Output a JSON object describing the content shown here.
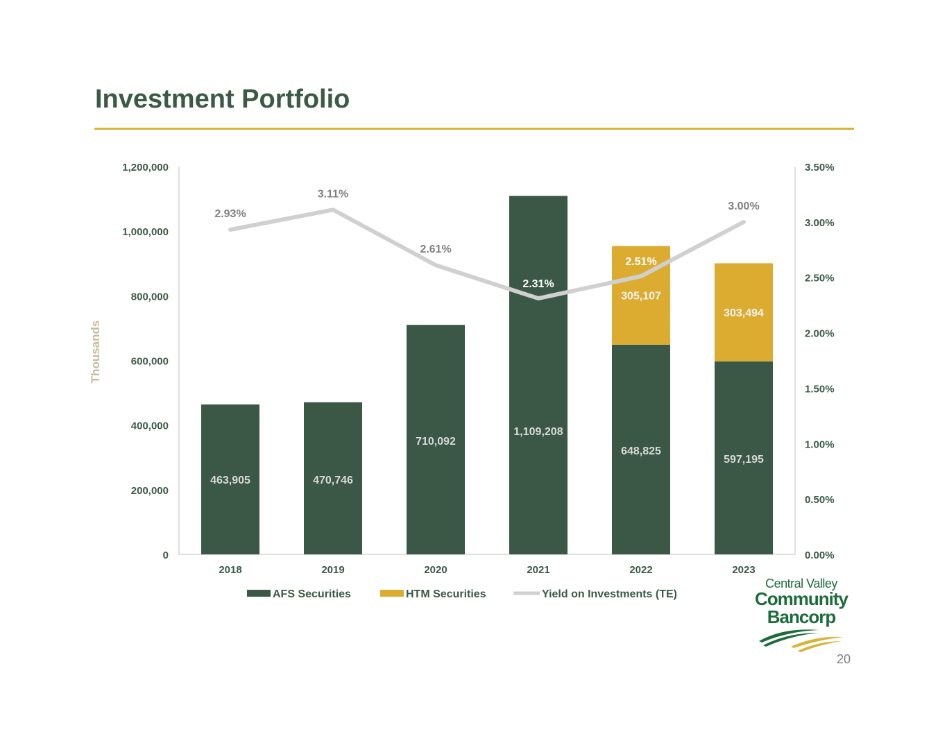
{
  "title": "Investment Portfolio",
  "page_number": "20",
  "logo": {
    "line1": "Central Valley",
    "line2": "Community",
    "line3": "Bancorp"
  },
  "colors": {
    "afs": "#3b5745",
    "htm": "#dbac30",
    "yield": "#d0d0d0",
    "title": "#3b5a45",
    "rule": "#d9b336"
  },
  "chart_data": {
    "type": "bar",
    "stacked": true,
    "categories": [
      "2018",
      "2019",
      "2020",
      "2021",
      "2022",
      "2023"
    ],
    "ylabel": "Thousands",
    "ylim": [
      0,
      1200000
    ],
    "yticks": [
      "0",
      "200,000",
      "400,000",
      "600,000",
      "800,000",
      "1,000,000",
      "1,200,000"
    ],
    "y2lim": [
      0,
      3.5
    ],
    "y2ticks": [
      "0.00%",
      "0.50%",
      "1.00%",
      "1.50%",
      "2.00%",
      "2.50%",
      "3.00%",
      "3.50%"
    ],
    "legend_position": "bottom",
    "series": [
      {
        "name": "AFS Securities",
        "type": "bar",
        "values": [
          463905,
          470746,
          710092,
          1109208,
          648825,
          597195
        ],
        "labels": [
          "463,905",
          "470,746",
          "710,092",
          "1,109,208",
          "648,825",
          "597,195"
        ]
      },
      {
        "name": "HTM Securities",
        "type": "bar",
        "values": [
          null,
          null,
          null,
          null,
          305107,
          303494
        ],
        "labels": [
          "",
          "",
          "",
          "",
          "305,107",
          "303,494"
        ]
      },
      {
        "name": "Yield on Investments (TE)",
        "type": "line",
        "axis": "right",
        "values": [
          2.93,
          3.11,
          2.61,
          2.31,
          2.51,
          3.0
        ],
        "labels": [
          "2.93%",
          "3.11%",
          "2.61%",
          "2.31%",
          "2.51%",
          "3.00%"
        ]
      }
    ]
  }
}
